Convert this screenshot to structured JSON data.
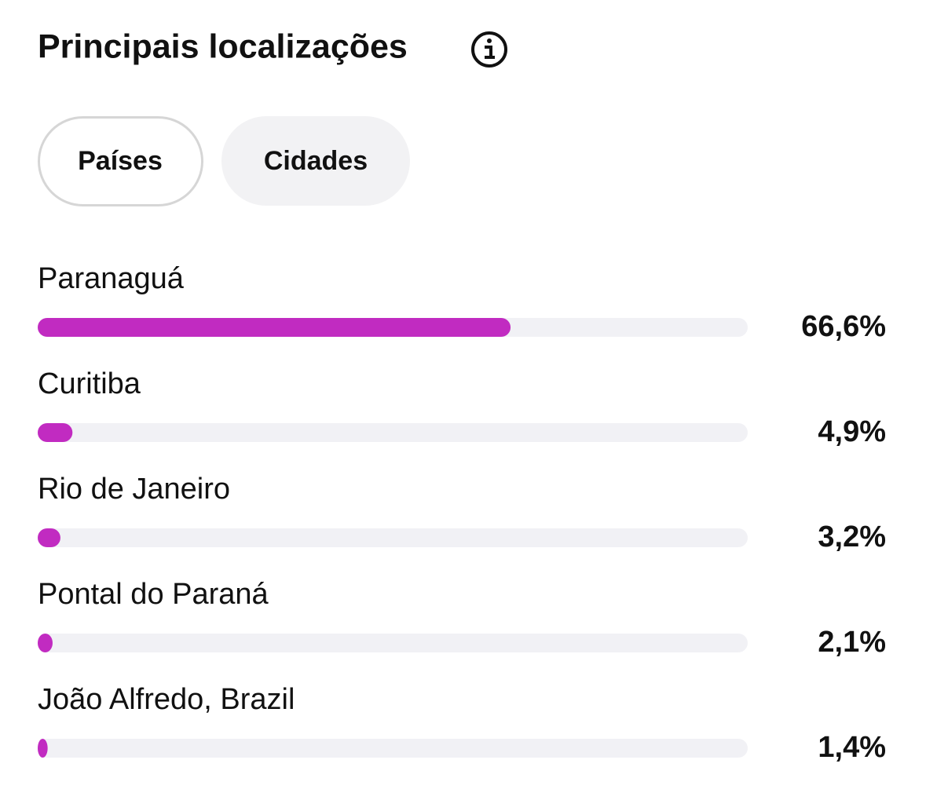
{
  "tabs": [
    "Países",
    "Cidades"
  ],
  "chart_data": {
    "type": "bar",
    "orientation": "horizontal",
    "title": "Principais localizações",
    "categories": [
      "Paranaguá",
      "Curitiba",
      "Rio de Janeiro",
      "Pontal do Paraná",
      "João Alfredo, Brazil"
    ],
    "values": [
      66.6,
      4.9,
      3.2,
      2.1,
      1.4
    ],
    "value_labels": [
      "66,6%",
      "4,9%",
      "3,2%",
      "2,1%",
      "1,4%"
    ],
    "color": "#c12bc1",
    "track_color": "#f1f1f5",
    "xlim": [
      0,
      100
    ]
  }
}
